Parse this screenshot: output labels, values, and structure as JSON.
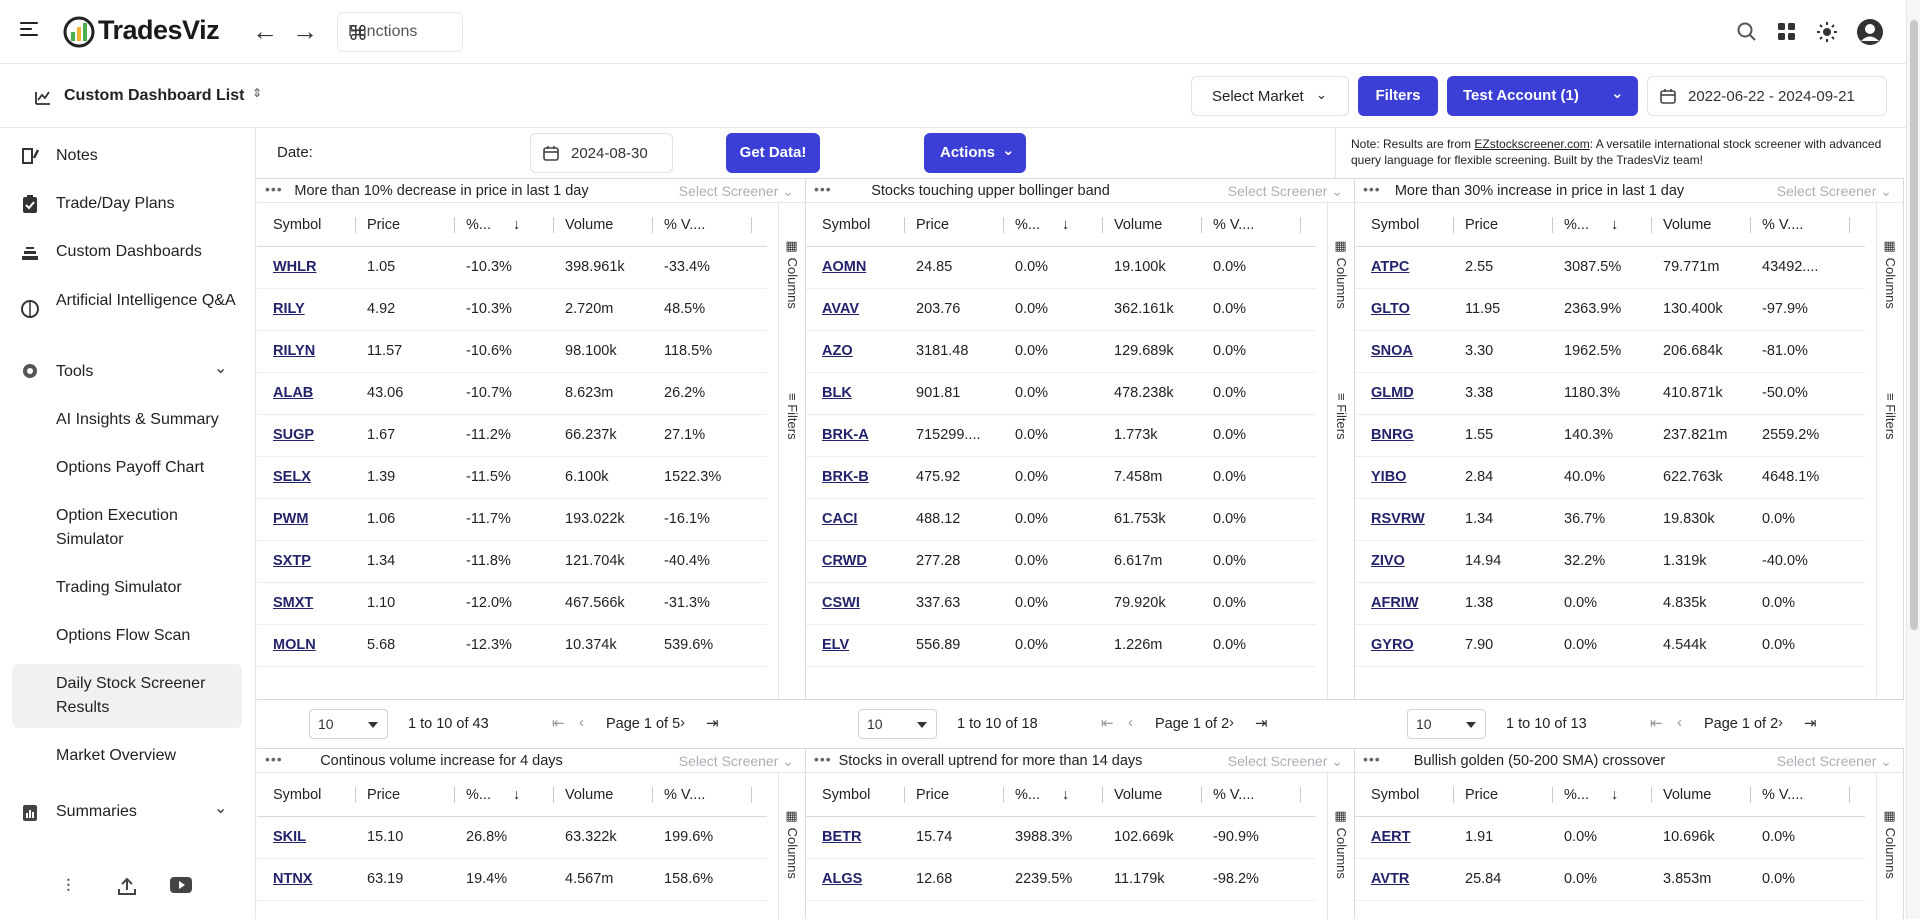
{
  "brand": "TradesViz",
  "functions_label": "Functions",
  "dashboard_list": "Custom Dashboard List",
  "select_market": "Select Market",
  "filters_label": "Filters",
  "account_label": "Test Account (1)",
  "date_range": "2022-06-22 - 2024-09-21",
  "date_label": "Date:",
  "date_value": "2024-08-30",
  "get_data_label": "Get Data!",
  "actions_label": "Actions",
  "note": {
    "prefix": "Note: Results are from ",
    "link": "EZstockscreener.com",
    "suffix": ": A versatile international stock screener with advanced query language for flexible screening. Built by the TradesViz team!"
  },
  "sidebar": {
    "items": [
      {
        "label": "Notes"
      },
      {
        "label": "Trade/Day Plans"
      },
      {
        "label": "Custom Dashboards"
      },
      {
        "label": "Artificial Intelligence Q&A"
      },
      {
        "label": "Tools"
      },
      {
        "label": "AI Insights & Summary"
      },
      {
        "label": "Options Payoff Chart"
      },
      {
        "label": "Option Execution Simulator"
      },
      {
        "label": "Trading Simulator"
      },
      {
        "label": "Options Flow Scan"
      },
      {
        "label": "Daily Stock Screener Results"
      },
      {
        "label": "Market Overview"
      },
      {
        "label": "Summaries"
      }
    ]
  },
  "columns": [
    "Symbol",
    "Price",
    "%...",
    "Volume",
    "% V...."
  ],
  "side_columns": "Columns",
  "side_filters": "Filters",
  "select_screener": "Select Screener",
  "page_size": "10",
  "panels": [
    {
      "title": "More than 10% decrease in price in last 1 day",
      "rows": [
        [
          "WHLR",
          "1.05",
          "-10.3%",
          "398.961k",
          "-33.4%"
        ],
        [
          "RILY",
          "4.92",
          "-10.3%",
          "2.720m",
          "48.5%"
        ],
        [
          "RILYN",
          "11.57",
          "-10.6%",
          "98.100k",
          "118.5%"
        ],
        [
          "ALAB",
          "43.06",
          "-10.7%",
          "8.623m",
          "26.2%"
        ],
        [
          "SUGP",
          "1.67",
          "-11.2%",
          "66.237k",
          "27.1%"
        ],
        [
          "SELX",
          "1.39",
          "-11.5%",
          "6.100k",
          "1522.3%"
        ],
        [
          "PWM",
          "1.06",
          "-11.7%",
          "193.022k",
          "-16.1%"
        ],
        [
          "SXTP",
          "1.34",
          "-11.8%",
          "121.704k",
          "-40.4%"
        ],
        [
          "SMXT",
          "1.10",
          "-12.0%",
          "467.566k",
          "-31.3%"
        ],
        [
          "MOLN",
          "5.68",
          "-12.3%",
          "10.374k",
          "539.6%"
        ]
      ],
      "range_a": "1",
      "range_b": "10",
      "total": "43",
      "page": "1",
      "pages": "5"
    },
    {
      "title": "Stocks touching upper bollinger band",
      "rows": [
        [
          "AOMN",
          "24.85",
          "0.0%",
          "19.100k",
          "0.0%"
        ],
        [
          "AVAV",
          "203.76",
          "0.0%",
          "362.161k",
          "0.0%"
        ],
        [
          "AZO",
          "3181.48",
          "0.0%",
          "129.689k",
          "0.0%"
        ],
        [
          "BLK",
          "901.81",
          "0.0%",
          "478.238k",
          "0.0%"
        ],
        [
          "BRK-A",
          "715299....",
          "0.0%",
          "1.773k",
          "0.0%"
        ],
        [
          "BRK-B",
          "475.92",
          "0.0%",
          "7.458m",
          "0.0%"
        ],
        [
          "CACI",
          "488.12",
          "0.0%",
          "61.753k",
          "0.0%"
        ],
        [
          "CRWD",
          "277.28",
          "0.0%",
          "6.617m",
          "0.0%"
        ],
        [
          "CSWI",
          "337.63",
          "0.0%",
          "79.920k",
          "0.0%"
        ],
        [
          "ELV",
          "556.89",
          "0.0%",
          "1.226m",
          "0.0%"
        ]
      ],
      "range_a": "1",
      "range_b": "10",
      "total": "18",
      "page": "1",
      "pages": "2"
    },
    {
      "title": "More than 30% increase in price in last 1 day",
      "rows": [
        [
          "ATPC",
          "2.55",
          "3087.5%",
          "79.771m",
          "43492...."
        ],
        [
          "GLTO",
          "11.95",
          "2363.9%",
          "130.400k",
          "-97.9%"
        ],
        [
          "SNOA",
          "3.30",
          "1962.5%",
          "206.684k",
          "-81.0%"
        ],
        [
          "GLMD",
          "3.38",
          "1180.3%",
          "410.871k",
          "-50.0%"
        ],
        [
          "BNRG",
          "1.55",
          "140.3%",
          "237.821m",
          "2559.2%"
        ],
        [
          "YIBO",
          "2.84",
          "40.0%",
          "622.763k",
          "4648.1%"
        ],
        [
          "RSVRW",
          "1.34",
          "36.7%",
          "19.830k",
          "0.0%"
        ],
        [
          "ZIVO",
          "14.94",
          "32.2%",
          "1.319k",
          "-40.0%"
        ],
        [
          "AFRIW",
          "1.38",
          "0.0%",
          "4.835k",
          "0.0%"
        ],
        [
          "GYRO",
          "7.90",
          "0.0%",
          "4.544k",
          "0.0%"
        ]
      ],
      "range_a": "1",
      "range_b": "10",
      "total": "13",
      "page": "1",
      "pages": "2"
    },
    {
      "title": "Continous volume increase for 4 days",
      "rows": [
        [
          "SKIL",
          "15.10",
          "26.8%",
          "63.322k",
          "199.6%"
        ],
        [
          "NTNX",
          "63.19",
          "19.4%",
          "4.567m",
          "158.6%"
        ]
      ]
    },
    {
      "title": "Stocks in overall uptrend for more than 14 days",
      "rows": [
        [
          "BETR",
          "15.74",
          "3988.3%",
          "102.669k",
          "-90.9%"
        ],
        [
          "ALGS",
          "12.68",
          "2239.5%",
          "11.179k",
          "-98.2%"
        ]
      ]
    },
    {
      "title": "Bullish golden (50-200 SMA) crossover",
      "rows": [
        [
          "AERT",
          "1.91",
          "0.0%",
          "10.696k",
          "0.0%"
        ],
        [
          "AVTR",
          "25.84",
          "0.0%",
          "3.853m",
          "0.0%"
        ]
      ]
    }
  ],
  "colors": {
    "accent": "#3b3fd6",
    "link": "#23236b"
  }
}
